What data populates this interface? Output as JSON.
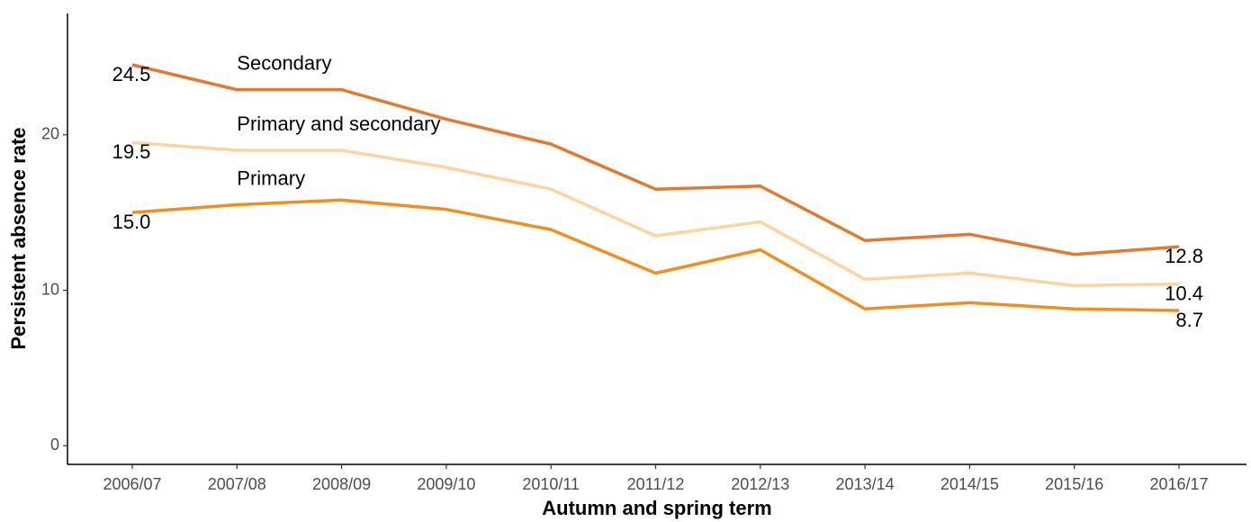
{
  "chart_data": {
    "type": "line",
    "xlabel": "Autumn and spring term",
    "ylabel": "Persistent absence rate",
    "categories": [
      "2006/07",
      "2007/08",
      "2008/09",
      "2009/10",
      "2010/11",
      "2011/12",
      "2012/13",
      "2013/14",
      "2014/15",
      "2015/16",
      "2016/17"
    ],
    "series": [
      {
        "name": "Secondary",
        "color": "#e6782e",
        "values": [
          24.5,
          22.9,
          22.9,
          21.0,
          19.4,
          16.5,
          16.7,
          13.2,
          13.6,
          12.3,
          12.8
        ],
        "value_labels": [
          "24.5",
          null,
          null,
          null,
          null,
          null,
          null,
          null,
          null,
          null,
          "12.8"
        ]
      },
      {
        "name": "Primary and secondary",
        "color": "#fdd49e",
        "values": [
          19.5,
          19.0,
          19.0,
          17.9,
          16.5,
          13.5,
          14.4,
          10.7,
          11.1,
          10.3,
          10.4
        ],
        "value_labels": [
          "19.5",
          null,
          null,
          null,
          null,
          null,
          null,
          null,
          null,
          null,
          "10.4"
        ]
      },
      {
        "name": "Primary",
        "color": "#f28e1c",
        "values": [
          15.0,
          15.5,
          15.8,
          15.2,
          13.9,
          11.1,
          12.6,
          8.8,
          9.2,
          8.8,
          8.7
        ],
        "value_labels": [
          "15.0",
          null,
          null,
          null,
          null,
          null,
          null,
          null,
          null,
          null,
          "8.7"
        ]
      }
    ],
    "ylim": [
      -1.2,
      27.8
    ],
    "yticks": [
      0,
      10,
      20
    ],
    "grid": false
  }
}
